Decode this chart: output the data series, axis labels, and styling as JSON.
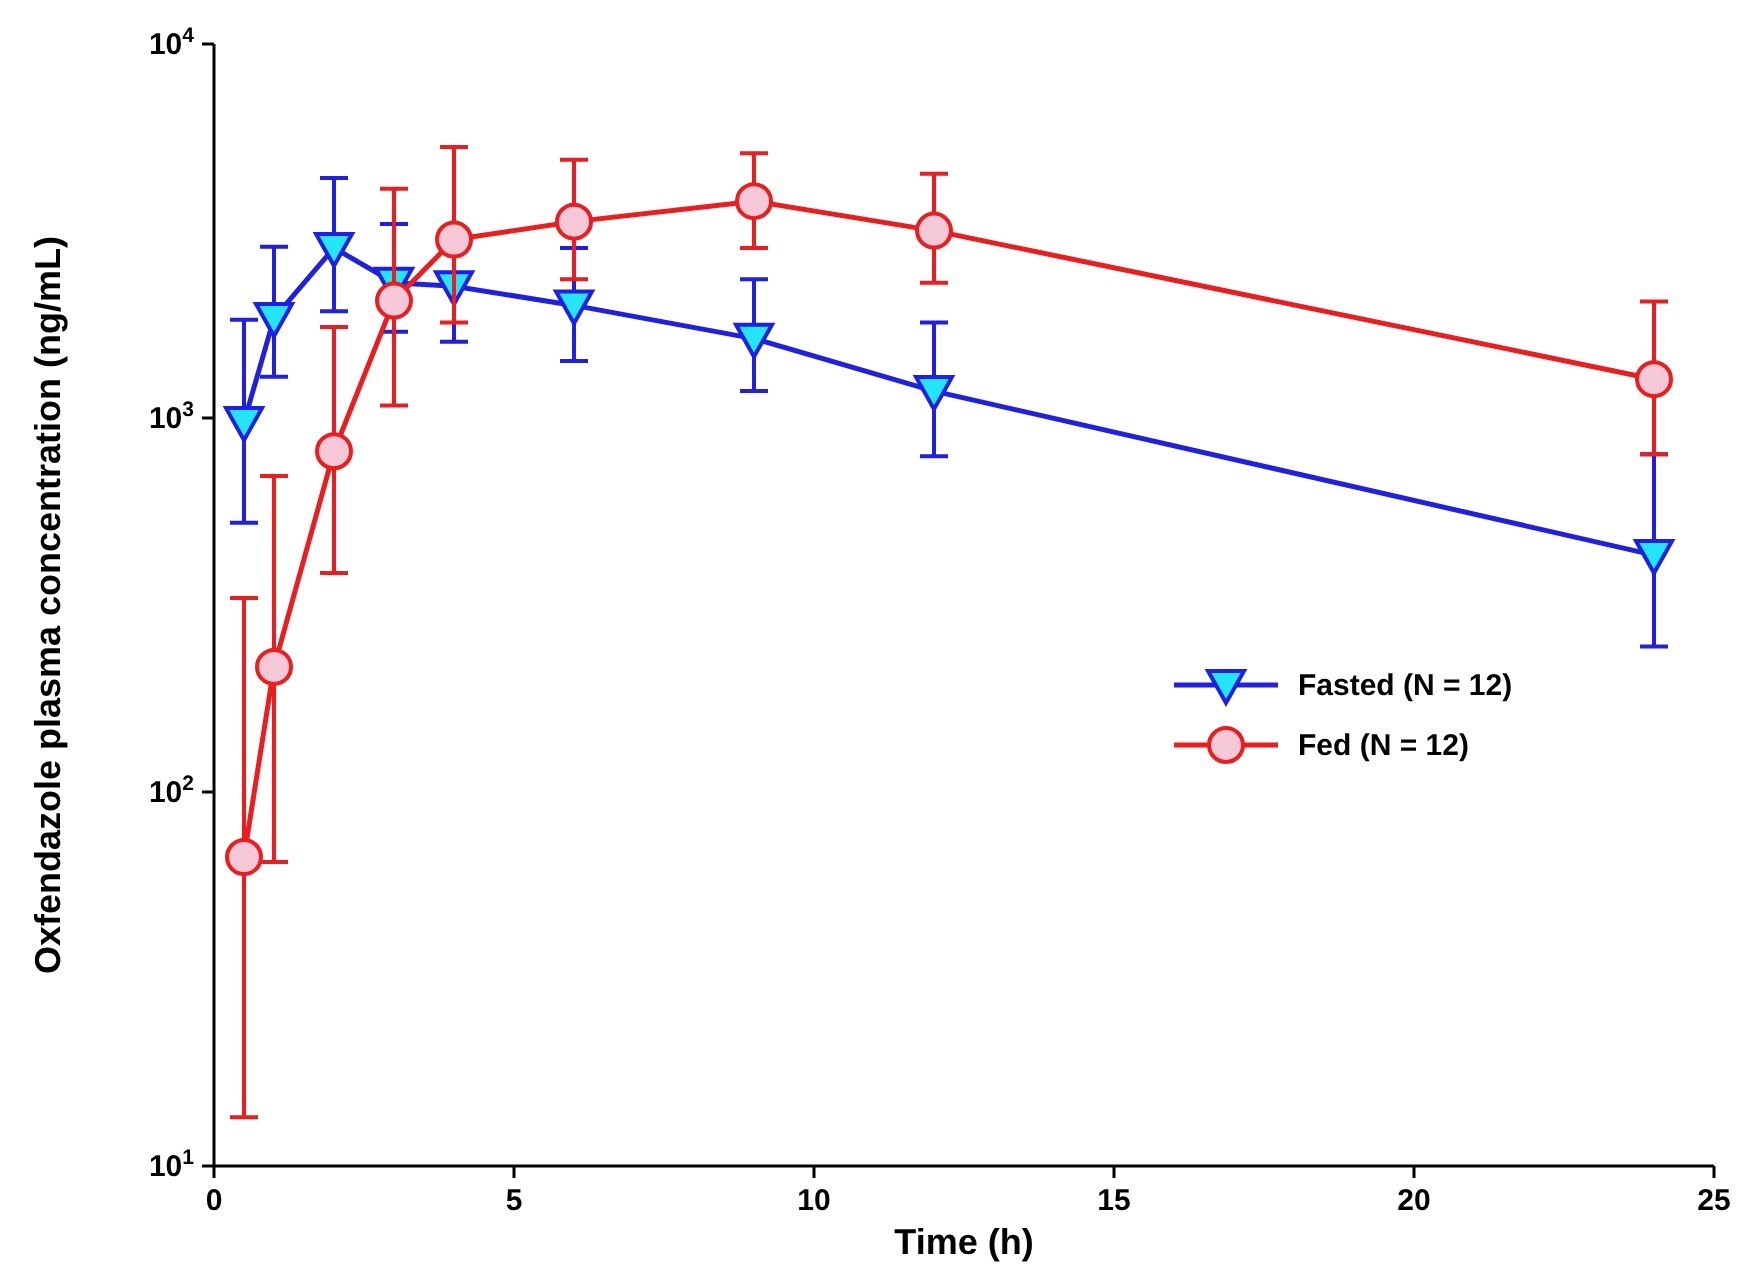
{
  "chart_data": {
    "type": "line",
    "xlabel": "Time (h)",
    "ylabel": "Oxfendazole plasma concentration (ng/mL)",
    "x": [
      0.5,
      1,
      2,
      3,
      4,
      6,
      9,
      12,
      24
    ],
    "log": "y",
    "xlim": [
      0,
      25
    ],
    "xticks": [
      0,
      5,
      10,
      15,
      20,
      25
    ],
    "ylim": [
      10,
      10000
    ],
    "yticks": [
      {
        "value": 10,
        "label": "10$^{1}$"
      },
      {
        "value": 100,
        "label": "10$^{2}$"
      },
      {
        "value": 1000,
        "label": "10$^{3}$"
      },
      {
        "value": 10000,
        "label": "10$^{4}$"
      }
    ],
    "grid": false,
    "legend": "center right",
    "line_style": "solid",
    "series": [
      {
        "name": "Fasted (N = 12)",
        "color": "#1f1fe8",
        "marker": "triangle",
        "values": [
          975,
          1850,
          2850,
          2300,
          2250,
          2000,
          1630,
          1180,
          430
        ],
        "errors": [
          [
            525,
            1830
          ],
          [
            1290,
            2870
          ],
          [
            1930,
            4380
          ],
          [
            1700,
            3300
          ],
          [
            1600,
            2800
          ],
          [
            1420,
            2850
          ],
          [
            1180,
            2350
          ],
          [
            790,
            1800
          ],
          [
            245,
            800
          ]
        ]
      },
      {
        "name": "Fed (N = 12)",
        "color": "#ee1c1c",
        "marker": "circle",
        "values": [
          67,
          216,
          815,
          2060,
          3000,
          3350,
          3800,
          3170,
          1270
        ],
        "errors": [
          [
            13.5,
            330
          ],
          [
            65,
            700
          ],
          [
            385,
            1750
          ],
          [
            1080,
            4100
          ],
          [
            1800,
            5300
          ],
          [
            2350,
            4900
          ],
          [
            2850,
            5100
          ],
          [
            2300,
            4500
          ],
          [
            800,
            2050
          ]
        ]
      }
    ]
  }
}
